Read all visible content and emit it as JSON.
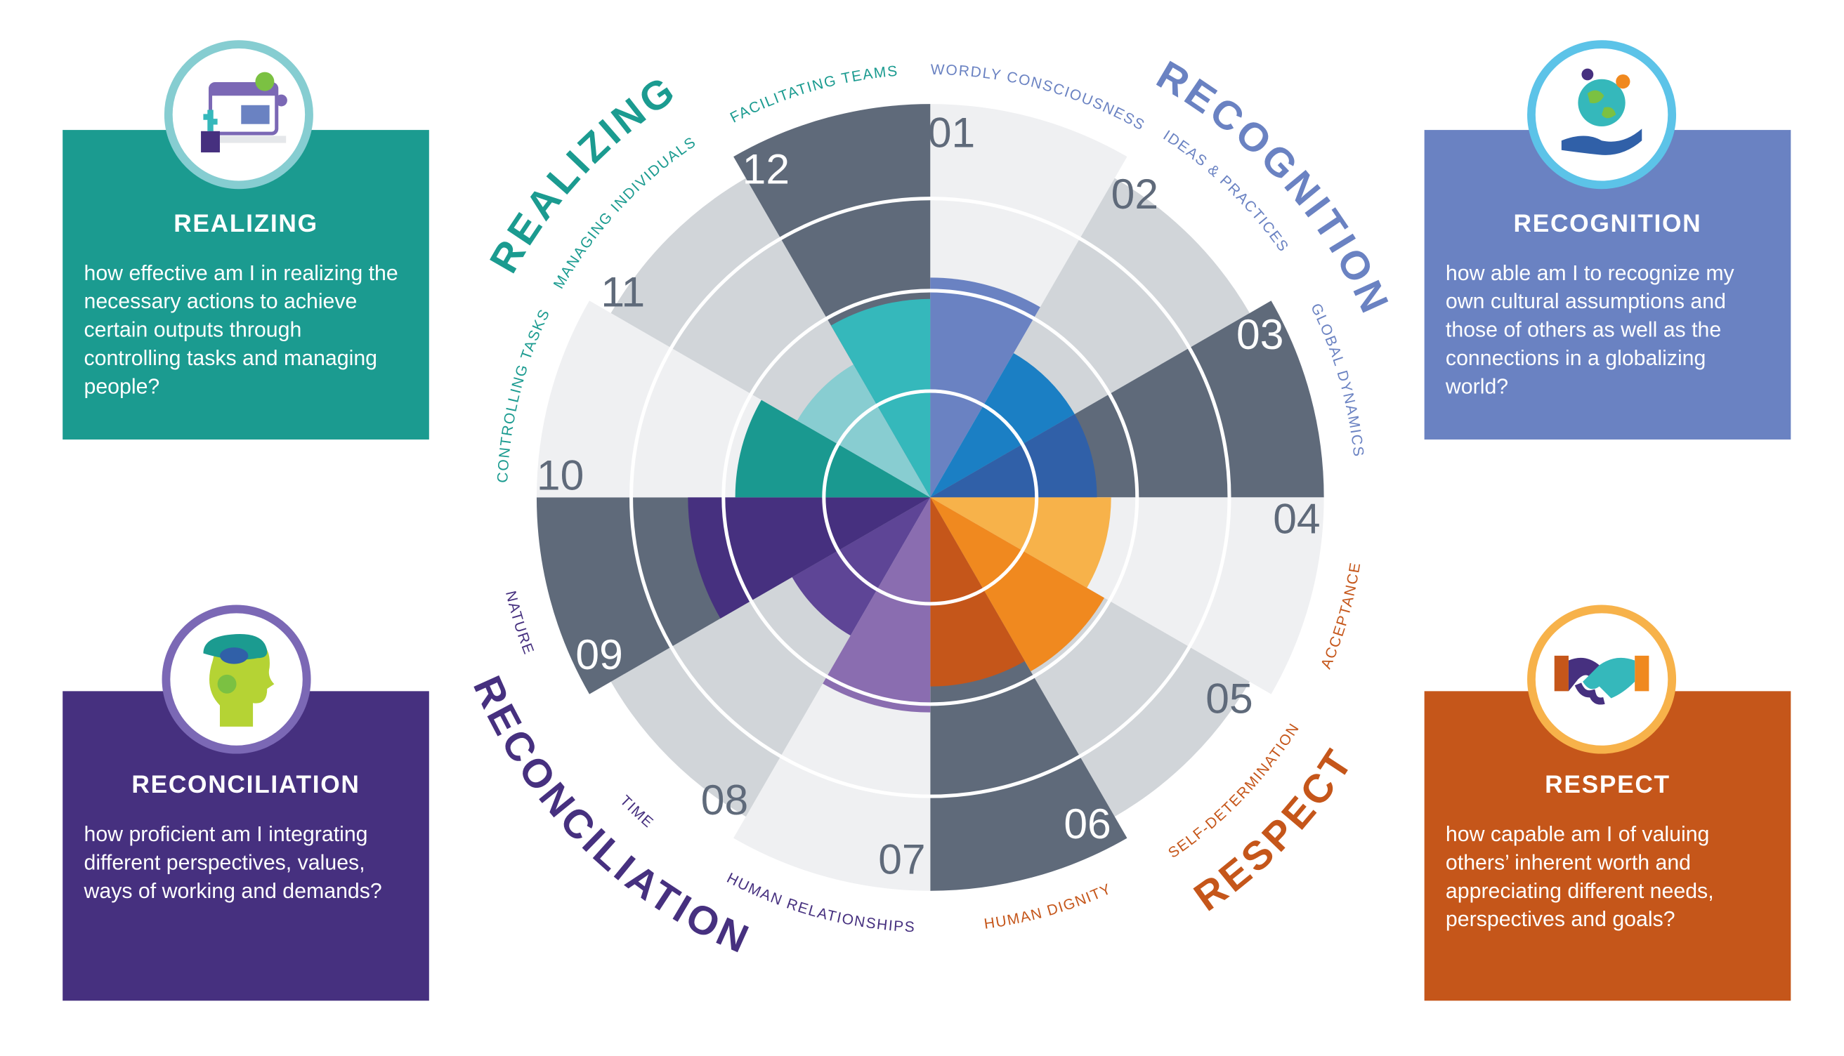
{
  "wheel": {
    "segments": [
      {
        "number": "01",
        "label": "WORDLY CONSCIOUSNESS"
      },
      {
        "number": "02",
        "label": "IDEAS & PRACTICES"
      },
      {
        "number": "03",
        "label": "GLOBAL DYNAMICS"
      },
      {
        "number": "04",
        "label": "ACCEPTANCE"
      },
      {
        "number": "05",
        "label": "SELF-DETERMINATION"
      },
      {
        "number": "06",
        "label": "HUMAN DIGNITY"
      },
      {
        "number": "07",
        "label": "HUMAN RELATIONSHIPS"
      },
      {
        "number": "08",
        "label": "TIME"
      },
      {
        "number": "09",
        "label": "NATURE"
      },
      {
        "number": "10",
        "label": "CONTROLLING TASKS"
      },
      {
        "number": "11",
        "label": "MANAGING INDIVIDUALS"
      },
      {
        "number": "12",
        "label": "FACILITATING TEAMS"
      }
    ],
    "areas": [
      "RECOGNITION",
      "RESPECT",
      "RECONCILIATION",
      "REALIZING"
    ]
  },
  "panels": [
    {
      "title": "REALIZING",
      "description": "how effective am I in realizing the necessary actions to achieve certain outputs through controlling tasks and managing people?"
    },
    {
      "title": "RECOGNITION",
      "description": "how able am I to recognize my own cultural assumptions and those of others as well as the connections in a globalizing world?"
    },
    {
      "title": "RECONCILIATION",
      "description": "how proficient am I integrating different perspectives, values, ways of working and demands?"
    },
    {
      "title": "RESPECT",
      "description": "how capable am I of valuing others’ inherent worth and appreciating different needs, perspectives and goals?"
    }
  ]
}
